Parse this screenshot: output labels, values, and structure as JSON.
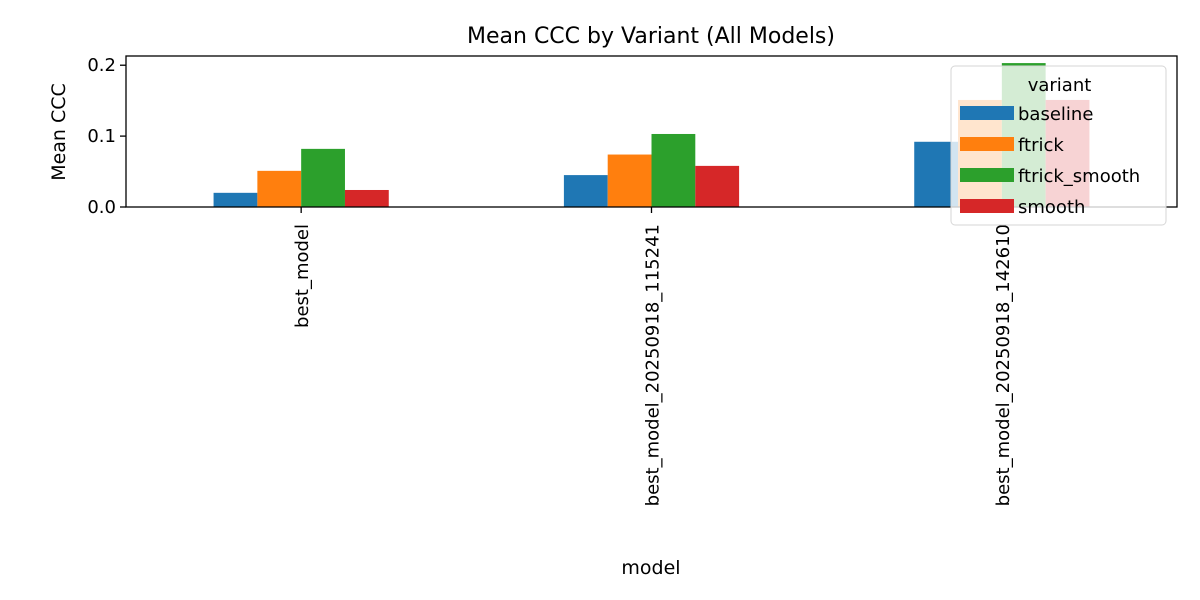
{
  "chart_data": {
    "type": "bar",
    "title": "Mean CCC by Variant (All Models)",
    "xlabel": "model",
    "ylabel": "Mean CCC",
    "categories": [
      "best_model",
      "best_model_20250918_115241",
      "best_model_20250918_142610"
    ],
    "series": [
      {
        "name": "baseline",
        "color": "#1f77b4",
        "values": [
          0.02,
          0.045,
          0.092
        ]
      },
      {
        "name": "ftrick",
        "color": "#ff7f0e",
        "values": [
          0.051,
          0.074,
          0.151
        ]
      },
      {
        "name": "ftrick_smooth",
        "color": "#2ca02c",
        "values": [
          0.082,
          0.103,
          0.203
        ]
      },
      {
        "name": "smooth",
        "color": "#d62728",
        "values": [
          0.024,
          0.058,
          0.151
        ]
      }
    ],
    "yticks": [
      "0.0",
      "0.1",
      "0.2"
    ],
    "ylim": [
      0,
      0.213
    ],
    "legend": {
      "title": "variant",
      "placement": "upper-right"
    },
    "grid": false
  }
}
